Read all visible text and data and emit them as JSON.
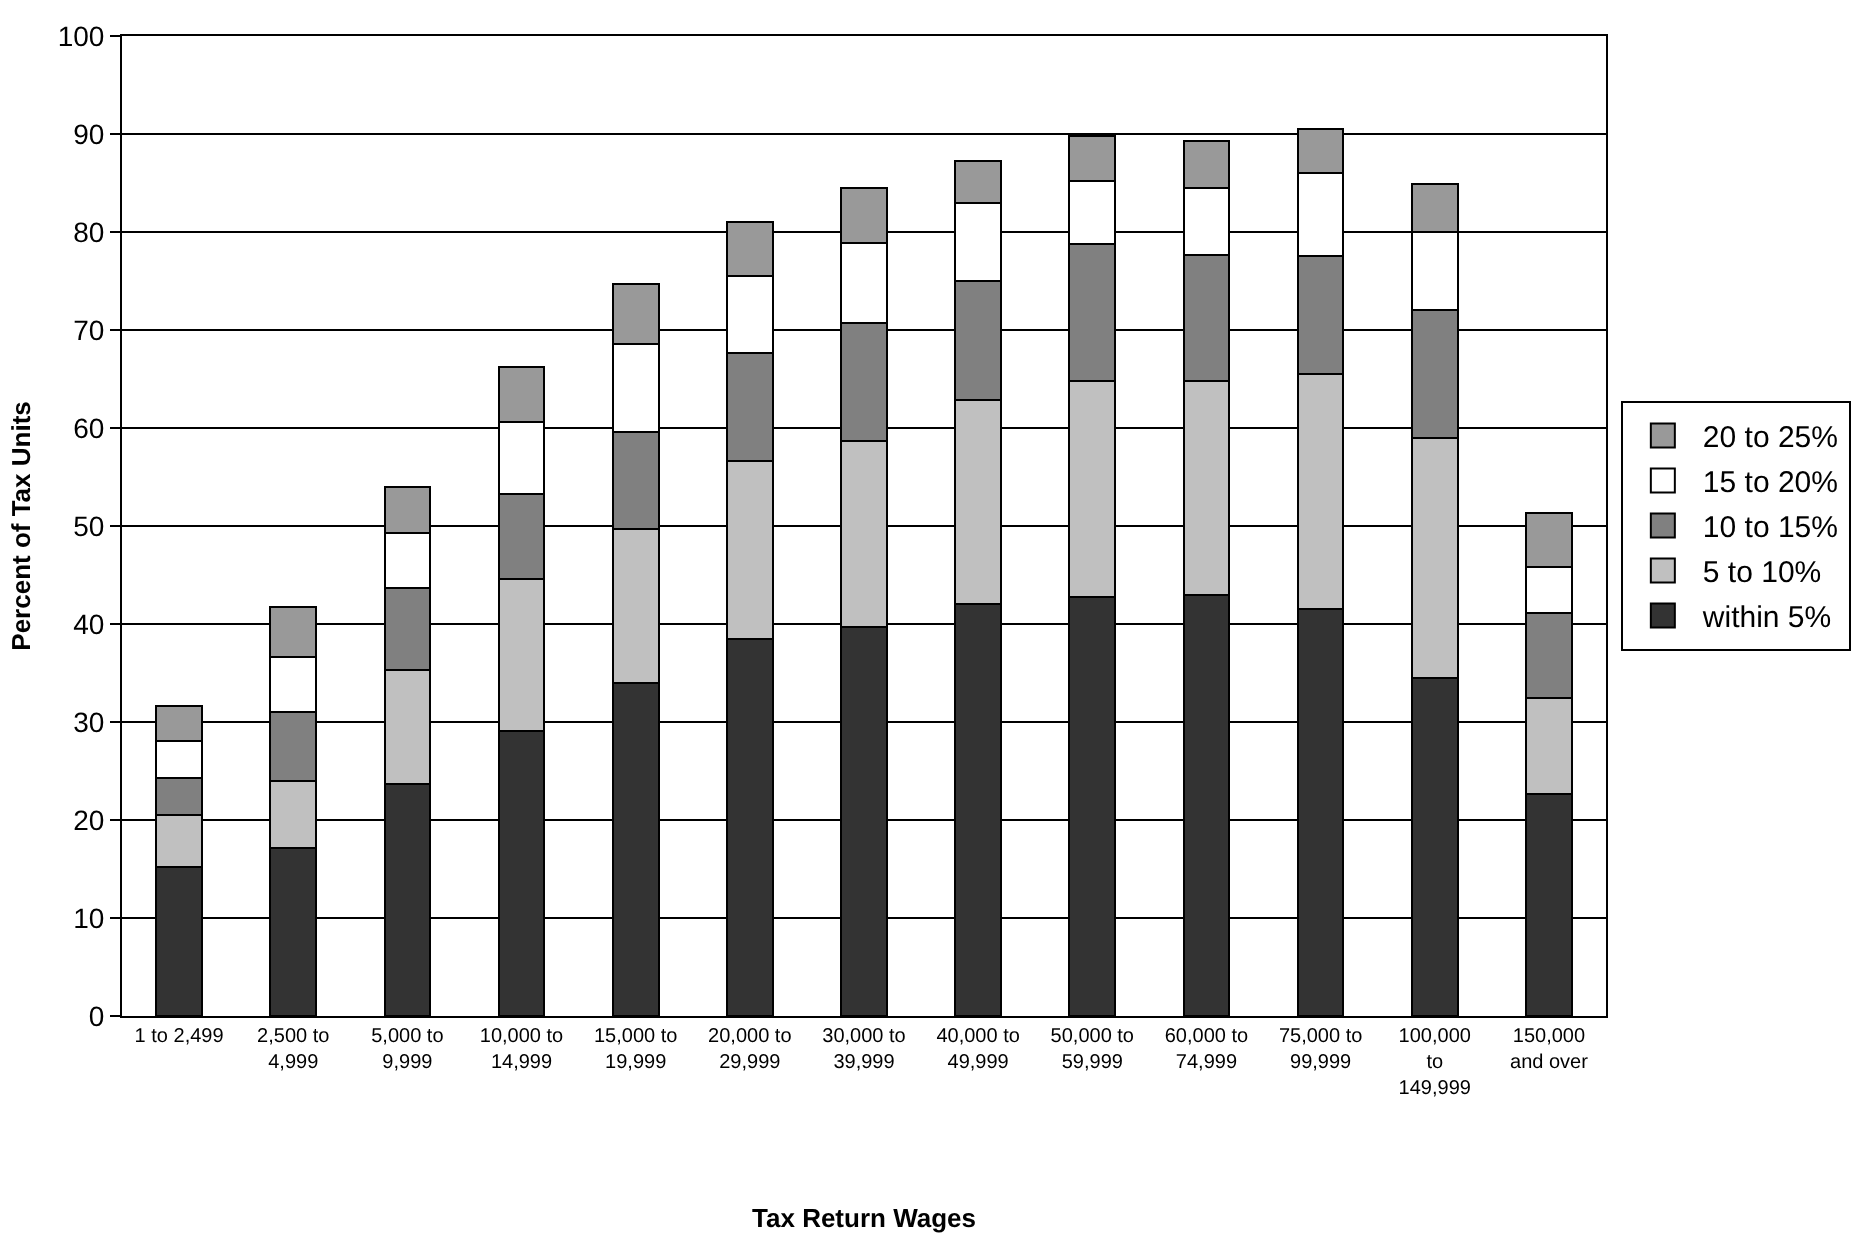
{
  "chart_data": {
    "type": "bar",
    "stacked": true,
    "xlabel": "Tax Return Wages",
    "ylabel": "Percent of Tax Units",
    "categories": [
      "1 to 2,499",
      "2,500 to\n4,999",
      "5,000 to\n9,999",
      "10,000 to\n14,999",
      "15,000 to\n19,999",
      "20,000 to\n29,999",
      "30,000 to\n39,999",
      "40,000 to\n49,999",
      "50,000 to\n59,999",
      "60,000 to\n74,999",
      "75,000 to\n99,999",
      "100,000\nto\n149,999",
      "150,000\nand over"
    ],
    "series": [
      {
        "name": "within 5%",
        "color": "#333333",
        "values": [
          15.2,
          17.1,
          23.7,
          29.1,
          34,
          38.5,
          39.7,
          42,
          42.8,
          43,
          41.5,
          34.5,
          22.7
        ]
      },
      {
        "name": "5 to 10%",
        "color": "#c0c0c0",
        "values": [
          5.3,
          6.9,
          11.6,
          15.5,
          15.7,
          18.1,
          19,
          20.9,
          22,
          21.8,
          24,
          24.5,
          9.8
        ]
      },
      {
        "name": "10 to 15%",
        "color": "#808080",
        "values": [
          3.8,
          7,
          8.4,
          8.7,
          9.9,
          11.1,
          12,
          12.1,
          14,
          12.9,
          12.1,
          13,
          8.6
        ]
      },
      {
        "name": "15 to 20%",
        "color": "#ffffff",
        "values": [
          3.8,
          5.6,
          5.6,
          7.3,
          9,
          7.8,
          8.2,
          8,
          6.4,
          6.8,
          8.4,
          8,
          4.7
        ]
      },
      {
        "name": "20 to 25%",
        "color": "#999999",
        "values": [
          3.5,
          5.1,
          4.7,
          5.6,
          6.1,
          5.5,
          5.6,
          4.2,
          4.6,
          4.8,
          4.5,
          4.9,
          5.5
        ]
      }
    ],
    "ylim": [
      0,
      100
    ],
    "yticks": [
      0,
      10,
      20,
      30,
      40,
      50,
      60,
      70,
      80,
      90,
      100
    ],
    "grid": "y",
    "legend": "right"
  }
}
